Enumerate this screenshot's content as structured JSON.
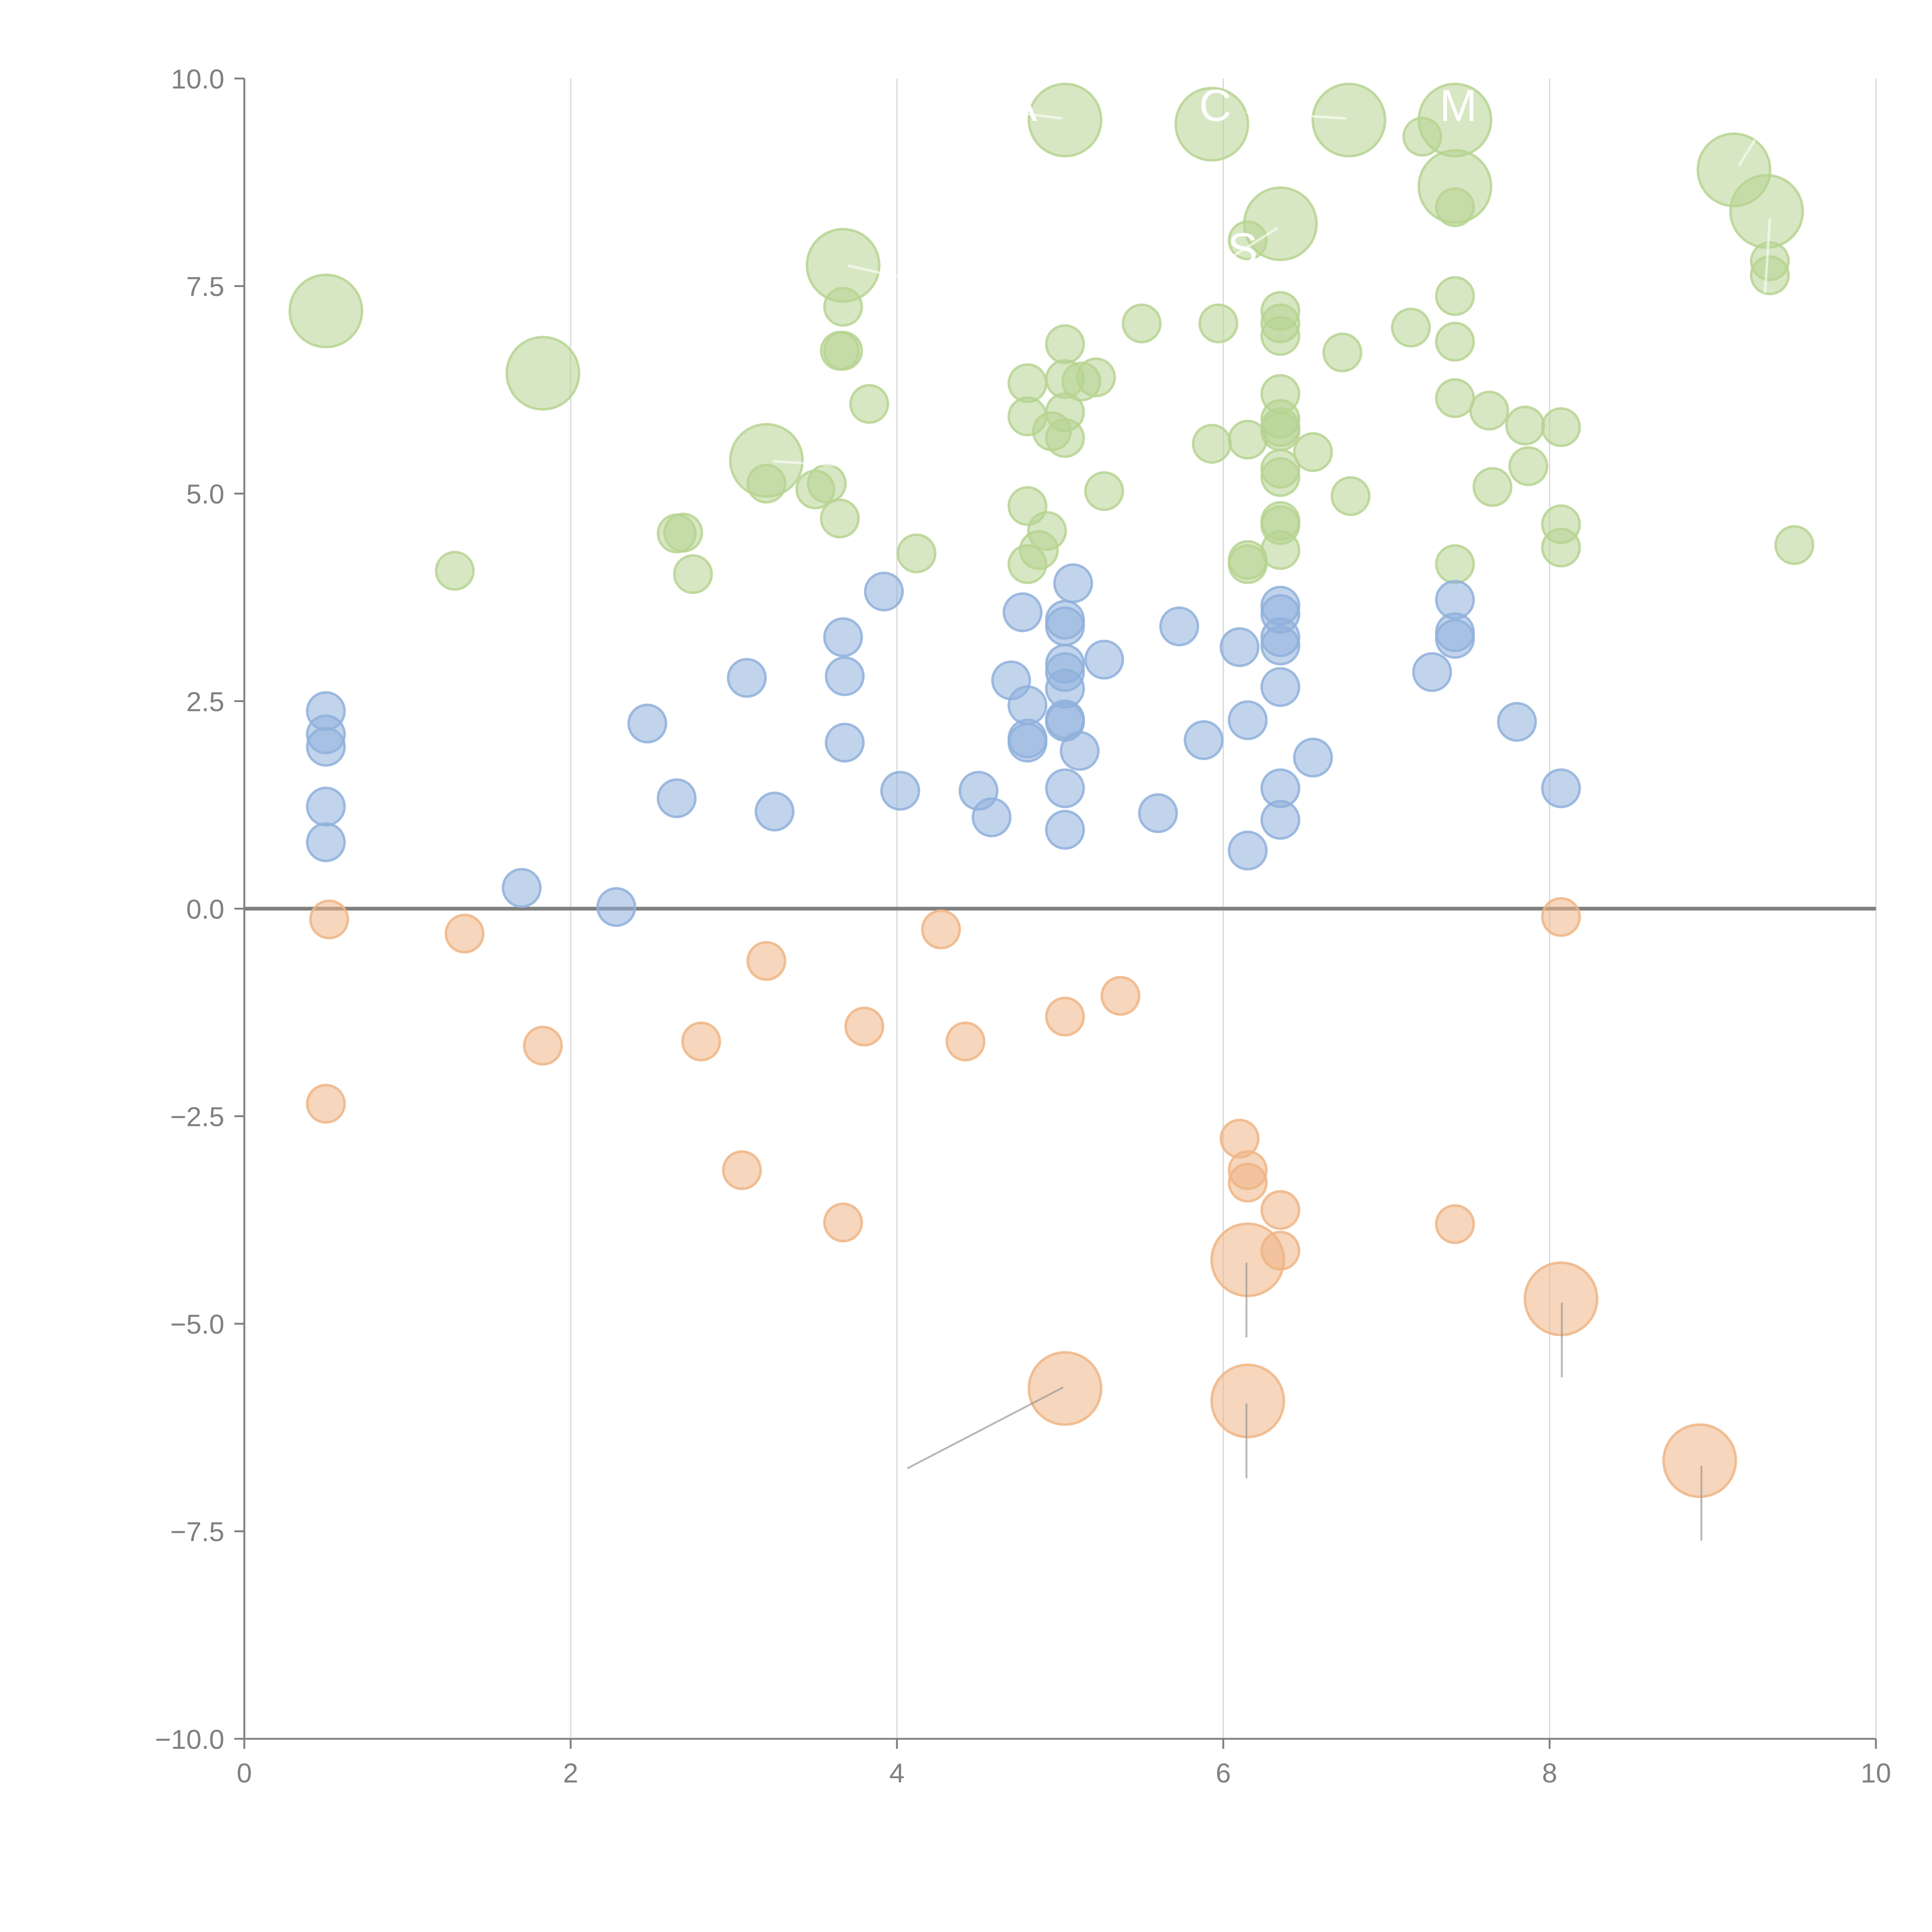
{
  "chart_data": {
    "type": "scatter",
    "title": "",
    "xlabel": "",
    "ylabel": "",
    "xlim": [
      0,
      10
    ],
    "ylim": [
      -10,
      10
    ],
    "x_ticks": [
      0,
      2,
      4,
      6,
      8,
      10
    ],
    "x_tick_labels": [
      "0",
      "2",
      "4",
      "6",
      "8",
      "10"
    ],
    "y_ticks": [
      10,
      7.5,
      5,
      2.5,
      0,
      -2.5,
      -5,
      -7.5,
      -10
    ],
    "y_tick_labels": [
      "10.0",
      "7.5",
      "5.0",
      "2.5",
      "0.0",
      "−2.5",
      "−5.0",
      "−7.5",
      "−10.0"
    ],
    "grid": "vertical",
    "zero_line": true,
    "legend": "none",
    "colors": {
      "blue": "#8fb0dc",
      "orange": "#eeb585",
      "green": "#b7d492",
      "axis": "#808080",
      "grid": "#d9d9d9"
    },
    "series": [
      {
        "name": "green",
        "color": "#b7d492",
        "points": [
          [
            0.5,
            7.2,
            3
          ],
          [
            1.83,
            6.45,
            3
          ],
          [
            3.2,
            5.4,
            3
          ],
          [
            3.67,
            7.75,
            3
          ],
          [
            5.03,
            9.5,
            3
          ],
          [
            5.93,
            9.45,
            3
          ],
          [
            6.77,
            9.5,
            3
          ],
          [
            7.42,
            9.5,
            3
          ],
          [
            9.13,
            8.9,
            3
          ],
          [
            9.33,
            8.4,
            3
          ],
          [
            6.35,
            8.25,
            3
          ],
          [
            7.42,
            8.7,
            3
          ],
          [
            1.29,
            4.07,
            1
          ],
          [
            2.65,
            4.52,
            1
          ],
          [
            2.69,
            4.53,
            1
          ],
          [
            2.75,
            4.03,
            1
          ],
          [
            3.2,
            5.12,
            1
          ],
          [
            3.5,
            5.05,
            1
          ],
          [
            3.57,
            5.12,
            1
          ],
          [
            3.65,
            4.7,
            1
          ],
          [
            3.65,
            6.72,
            1
          ],
          [
            3.67,
            6.72,
            1
          ],
          [
            3.67,
            7.25,
            1
          ],
          [
            3.83,
            6.08,
            1
          ],
          [
            4.12,
            4.28,
            1
          ],
          [
            4.8,
            6.33,
            1
          ],
          [
            4.8,
            5.93,
            1
          ],
          [
            4.8,
            4.85,
            1
          ],
          [
            4.8,
            4.15,
            1
          ],
          [
            4.87,
            4.32,
            1
          ],
          [
            4.92,
            4.55,
            1
          ],
          [
            4.95,
            5.75,
            1
          ],
          [
            5.03,
            6.8,
            1
          ],
          [
            5.03,
            6.38,
            1
          ],
          [
            5.03,
            5.98,
            1
          ],
          [
            5.03,
            5.67,
            1
          ],
          [
            5.13,
            6.35,
            1
          ],
          [
            5.22,
            6.4,
            1
          ],
          [
            5.27,
            5.03,
            1
          ],
          [
            5.5,
            7.05,
            1
          ],
          [
            5.93,
            5.6,
            1
          ],
          [
            5.97,
            7.05,
            1
          ],
          [
            6.15,
            8.05,
            1
          ],
          [
            6.15,
            5.65,
            1
          ],
          [
            6.15,
            4.2,
            1
          ],
          [
            6.15,
            4.15,
            1
          ],
          [
            6.35,
            7.2,
            1
          ],
          [
            6.35,
            7.05,
            1
          ],
          [
            6.35,
            6.9,
            1
          ],
          [
            6.35,
            6.2,
            1
          ],
          [
            6.35,
            5.9,
            1
          ],
          [
            6.35,
            5.8,
            1
          ],
          [
            6.35,
            5.75,
            1
          ],
          [
            6.35,
            5.3,
            1
          ],
          [
            6.35,
            5.2,
            1
          ],
          [
            6.35,
            4.67,
            1
          ],
          [
            6.35,
            4.62,
            1
          ],
          [
            6.35,
            4.32,
            1
          ],
          [
            6.55,
            5.5,
            1
          ],
          [
            6.73,
            6.7,
            1
          ],
          [
            6.78,
            4.97,
            1
          ],
          [
            7.15,
            7.0,
            1
          ],
          [
            7.22,
            9.3,
            1
          ],
          [
            7.42,
            8.45,
            1
          ],
          [
            7.42,
            7.38,
            1
          ],
          [
            7.42,
            6.83,
            1
          ],
          [
            7.42,
            6.15,
            1
          ],
          [
            7.42,
            4.15,
            1
          ],
          [
            7.63,
            6.0,
            1
          ],
          [
            7.65,
            5.08,
            1
          ],
          [
            7.85,
            5.82,
            1
          ],
          [
            7.87,
            5.33,
            1
          ],
          [
            8.07,
            5.8,
            1
          ],
          [
            8.07,
            4.63,
            1
          ],
          [
            8.07,
            4.35,
            1
          ],
          [
            9.35,
            7.8,
            1
          ],
          [
            9.35,
            7.63,
            1
          ],
          [
            9.5,
            4.38,
            1
          ]
        ]
      },
      {
        "name": "blue",
        "color": "#8fb0dc",
        "points": [
          [
            0.5,
            2.38,
            1
          ],
          [
            0.5,
            2.1,
            1
          ],
          [
            0.5,
            1.95,
            1
          ],
          [
            0.5,
            1.23,
            1
          ],
          [
            0.5,
            0.8,
            1
          ],
          [
            1.7,
            0.25,
            1
          ],
          [
            2.28,
            0.02,
            1
          ],
          [
            2.47,
            2.23,
            1
          ],
          [
            2.65,
            1.33,
            1
          ],
          [
            3.08,
            2.78,
            1
          ],
          [
            3.25,
            1.17,
            1
          ],
          [
            3.67,
            3.27,
            1
          ],
          [
            3.68,
            2.8,
            1
          ],
          [
            3.68,
            2.0,
            1
          ],
          [
            3.92,
            3.82,
            1
          ],
          [
            4.02,
            1.42,
            1
          ],
          [
            4.5,
            1.42,
            1
          ],
          [
            4.58,
            1.1,
            1
          ],
          [
            4.7,
            2.75,
            1
          ],
          [
            4.77,
            3.57,
            1
          ],
          [
            4.8,
            2.45,
            1
          ],
          [
            4.8,
            2.05,
            1
          ],
          [
            4.8,
            2.0,
            1
          ],
          [
            5.03,
            3.48,
            1
          ],
          [
            5.03,
            3.4,
            1
          ],
          [
            5.03,
            2.95,
            1
          ],
          [
            5.03,
            2.85,
            1
          ],
          [
            5.03,
            2.65,
            1
          ],
          [
            5.03,
            2.28,
            1
          ],
          [
            5.03,
            2.25,
            1
          ],
          [
            5.03,
            1.45,
            1
          ],
          [
            5.03,
            0.95,
            1
          ],
          [
            5.08,
            3.92,
            1
          ],
          [
            5.12,
            1.9,
            1
          ],
          [
            5.27,
            3.0,
            1
          ],
          [
            5.6,
            1.15,
            1
          ],
          [
            5.73,
            3.4,
            1
          ],
          [
            5.88,
            2.03,
            1
          ],
          [
            6.1,
            3.15,
            1
          ],
          [
            6.15,
            2.27,
            1
          ],
          [
            6.15,
            0.7,
            1
          ],
          [
            6.35,
            3.65,
            1
          ],
          [
            6.35,
            3.55,
            1
          ],
          [
            6.35,
            3.27,
            1
          ],
          [
            6.35,
            3.17,
            1
          ],
          [
            6.35,
            2.67,
            1
          ],
          [
            6.35,
            1.45,
            1
          ],
          [
            6.35,
            1.07,
            1
          ],
          [
            6.55,
            1.82,
            1
          ],
          [
            7.28,
            2.85,
            1
          ],
          [
            7.42,
            3.72,
            1
          ],
          [
            7.42,
            3.33,
            1
          ],
          [
            7.42,
            3.25,
            1
          ],
          [
            7.8,
            2.25,
            1
          ],
          [
            8.07,
            1.45,
            1
          ]
        ]
      },
      {
        "name": "orange",
        "color": "#eeb585",
        "points": [
          [
            0.52,
            -0.13,
            1
          ],
          [
            0.5,
            -2.35,
            1
          ],
          [
            1.35,
            -0.3,
            1
          ],
          [
            1.83,
            -1.65,
            1
          ],
          [
            2.8,
            -1.6,
            1
          ],
          [
            3.05,
            -3.15,
            1
          ],
          [
            3.2,
            -0.63,
            1
          ],
          [
            3.67,
            -3.78,
            1
          ],
          [
            3.8,
            -1.42,
            1
          ],
          [
            4.27,
            -0.25,
            1
          ],
          [
            4.42,
            -1.6,
            1
          ],
          [
            5.03,
            -1.3,
            1
          ],
          [
            5.37,
            -1.05,
            1
          ],
          [
            6.1,
            -2.77,
            1
          ],
          [
            6.15,
            -3.15,
            1
          ],
          [
            6.15,
            -3.3,
            1
          ],
          [
            6.35,
            -3.63,
            1
          ],
          [
            6.35,
            -4.12,
            1
          ],
          [
            7.42,
            -3.8,
            1
          ],
          [
            8.07,
            -0.1,
            1
          ],
          [
            5.03,
            -5.78,
            3
          ],
          [
            6.15,
            -4.23,
            3
          ],
          [
            6.15,
            -5.93,
            3
          ],
          [
            8.07,
            -4.7,
            3
          ],
          [
            8.92,
            -6.65,
            3
          ]
        ]
      }
    ],
    "annotations": [
      {
        "text": "A",
        "color": "#ffffff"
      },
      {
        "text": "C",
        "color": "#ffffff"
      },
      {
        "text": "M",
        "color": "#ffffff"
      },
      {
        "text": "S",
        "color": "#ffffff"
      }
    ]
  }
}
